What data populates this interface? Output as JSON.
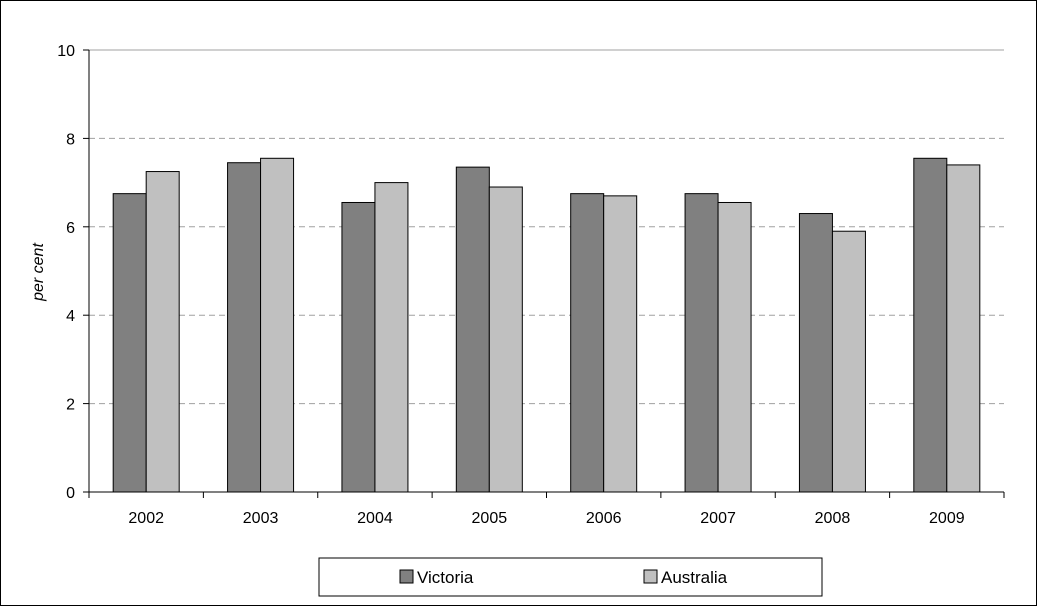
{
  "chart_data": {
    "type": "bar",
    "categories": [
      "2002",
      "2003",
      "2004",
      "2005",
      "2006",
      "2007",
      "2008",
      "2009"
    ],
    "series": [
      {
        "name": "Victoria",
        "color": "#808080",
        "values": [
          6.75,
          7.45,
          6.55,
          7.35,
          6.75,
          6.75,
          6.3,
          7.55
        ]
      },
      {
        "name": "Australia",
        "color": "#c0c0c0",
        "values": [
          7.25,
          7.55,
          7.0,
          6.9,
          6.7,
          6.55,
          5.9,
          7.4
        ]
      }
    ],
    "title": "",
    "xlabel": "",
    "ylabel": "per cent",
    "ylim": [
      0,
      10
    ],
    "yticks": [
      "0",
      "2",
      "4",
      "6",
      "8",
      "10"
    ],
    "grid": true,
    "legend_position": "bottom"
  }
}
